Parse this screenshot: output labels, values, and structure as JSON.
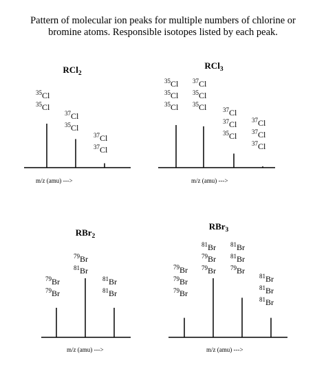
{
  "caption": [
    "Pattern of molecular ion peaks for multiple numbers of chlorine or",
    "bromine atoms.  Responsible isotopes listed by each peak."
  ],
  "axis_label": "m/z (amu)  --->",
  "chart_data": [
    {
      "type": "bar",
      "title": {
        "base": "RCl",
        "sub": "2"
      },
      "relative_heights": [
        1.0,
        0.65,
        0.1
      ],
      "peaks": [
        {
          "isotopes": [
            {
              "mass": "35",
              "el": "Cl"
            },
            {
              "mass": "35",
              "el": "Cl"
            }
          ]
        },
        {
          "isotopes": [
            {
              "mass": "37",
              "el": "Cl"
            },
            {
              "mass": "35",
              "el": "Cl"
            }
          ]
        },
        {
          "isotopes": [
            {
              "mass": "37",
              "el": "Cl"
            },
            {
              "mass": "37",
              "el": "Cl"
            }
          ]
        }
      ]
    },
    {
      "type": "bar",
      "title": {
        "base": "RCl",
        "sub": "3"
      },
      "relative_heights": [
        1.0,
        0.97,
        0.33,
        0.03
      ],
      "peaks": [
        {
          "isotopes": [
            {
              "mass": "35",
              "el": "Cl"
            },
            {
              "mass": "35",
              "el": "Cl"
            },
            {
              "mass": "35",
              "el": "Cl"
            }
          ]
        },
        {
          "isotopes": [
            {
              "mass": "37",
              "el": "Cl"
            },
            {
              "mass": "35",
              "el": "Cl"
            },
            {
              "mass": "35",
              "el": "Cl"
            }
          ]
        },
        {
          "isotopes": [
            {
              "mass": "37",
              "el": "Cl"
            },
            {
              "mass": "37",
              "el": "Cl"
            },
            {
              "mass": "35",
              "el": "Cl"
            }
          ]
        },
        {
          "isotopes": [
            {
              "mass": "37",
              "el": "Cl"
            },
            {
              "mass": "37",
              "el": "Cl"
            },
            {
              "mass": "37",
              "el": "Cl"
            }
          ]
        }
      ]
    },
    {
      "type": "bar",
      "title": {
        "base": "RBr",
        "sub": "2"
      },
      "relative_heights": [
        0.5,
        1.0,
        0.5
      ],
      "peaks": [
        {
          "isotopes": [
            {
              "mass": "79",
              "el": "Br"
            },
            {
              "mass": "79",
              "el": "Br"
            }
          ]
        },
        {
          "isotopes": [
            {
              "mass": "79",
              "el": "Br"
            },
            {
              "mass": "81",
              "el": "Br"
            }
          ]
        },
        {
          "isotopes": [
            {
              "mass": "81",
              "el": "Br"
            },
            {
              "mass": "81",
              "el": "Br"
            }
          ]
        }
      ]
    },
    {
      "type": "bar",
      "title": {
        "base": "RBr",
        "sub": "3"
      },
      "relative_heights": [
        0.33,
        1.0,
        0.67,
        0.33
      ],
      "peaks": [
        {
          "isotopes": [
            {
              "mass": "79",
              "el": "Br"
            },
            {
              "mass": "79",
              "el": "Br"
            },
            {
              "mass": "79",
              "el": "Br"
            }
          ]
        },
        {
          "isotopes": [
            {
              "mass": "81",
              "el": "Br"
            },
            {
              "mass": "79",
              "el": "Br"
            },
            {
              "mass": "79",
              "el": "Br"
            }
          ]
        },
        {
          "isotopes": [
            {
              "mass": "81",
              "el": "Br"
            },
            {
              "mass": "81",
              "el": "Br"
            },
            {
              "mass": "79",
              "el": "Br"
            }
          ]
        },
        {
          "isotopes": [
            {
              "mass": "81",
              "el": "Br"
            },
            {
              "mass": "81",
              "el": "Br"
            },
            {
              "mass": "81",
              "el": "Br"
            }
          ]
        }
      ]
    }
  ]
}
